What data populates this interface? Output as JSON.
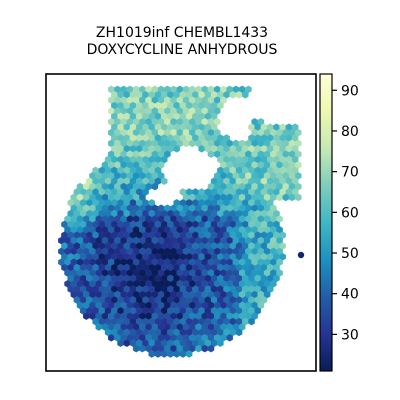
{
  "chart_data": {
    "type": "heatmap",
    "subtype": "hexbin",
    "title": [
      "ZH1019inf CHEMBL1433",
      "DOXYCYCLINE ANHYDROUS"
    ],
    "xlabel": "",
    "ylabel": "",
    "colormap": "YlGnBu_r",
    "colorbar": {
      "range": [
        21,
        94
      ],
      "ticks": [
        30,
        40,
        50,
        60,
        70,
        80,
        90
      ],
      "tick_labels": [
        "30",
        "40",
        "50",
        "60",
        "70",
        "80",
        "90"
      ]
    },
    "colors": {
      "low": "#0b1a4e",
      "mid_low": "#2453a3",
      "mid": "#2c98bf",
      "mid_high": "#69c5bd",
      "high": "#feffd0"
    },
    "regions_description_values": {
      "lower_left_core_mean": 38,
      "upper_half_mean": 58,
      "right_arm_mean": 55,
      "upper_left_edge_mean": 70
    },
    "grid": false,
    "axis_ticks": false
  }
}
